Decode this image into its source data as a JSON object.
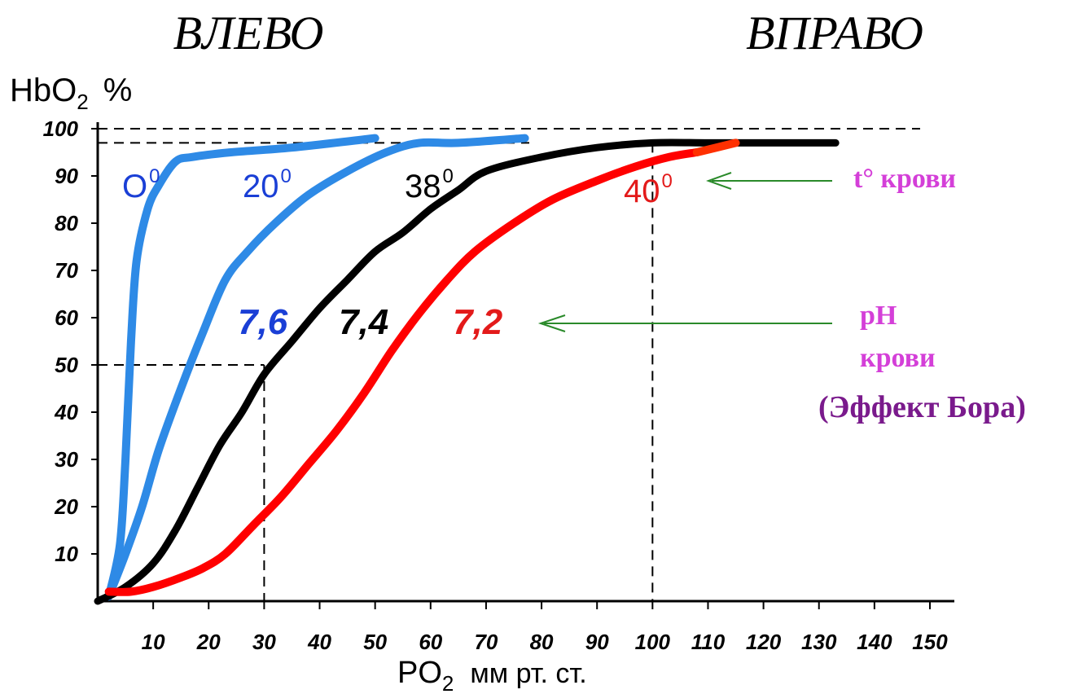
{
  "header": {
    "left_label": "ВЛЕВО",
    "right_label": "ВПРАВО"
  },
  "chart_data": {
    "type": "line",
    "ylabel": "HbO",
    "ylabel_sub": "2",
    "ylabel_unit": "%",
    "xlabel": "PO",
    "xlabel_sub": "2",
    "xlabel_unit": "мм рт. ст.",
    "xlim": [
      0,
      150
    ],
    "ylim": [
      0,
      100
    ],
    "xticks": [
      10,
      20,
      30,
      40,
      50,
      60,
      70,
      80,
      90,
      100,
      110,
      120,
      130,
      140,
      150
    ],
    "yticks": [
      10,
      20,
      30,
      40,
      50,
      60,
      70,
      80,
      90,
      100
    ],
    "grid": false,
    "series": [
      {
        "name": "0°",
        "color": "#2e8ae6",
        "points": [
          [
            2,
            1
          ],
          [
            4,
            12
          ],
          [
            5,
            30
          ],
          [
            6,
            55
          ],
          [
            7,
            72
          ],
          [
            9,
            83
          ],
          [
            11,
            88
          ],
          [
            14,
            93
          ],
          [
            17,
            94
          ],
          [
            24,
            95
          ],
          [
            35,
            96
          ],
          [
            50,
            98
          ]
        ]
      },
      {
        "name": "20°",
        "color": "#2e8ae6",
        "points": [
          [
            2,
            1
          ],
          [
            5,
            10
          ],
          [
            8,
            20
          ],
          [
            11,
            32
          ],
          [
            15,
            45
          ],
          [
            19,
            57
          ],
          [
            23,
            68
          ],
          [
            27,
            74
          ],
          [
            32,
            80
          ],
          [
            38,
            86
          ],
          [
            45,
            91
          ],
          [
            52,
            95
          ],
          [
            58,
            97
          ],
          [
            65,
            97
          ],
          [
            77,
            98
          ]
        ]
      },
      {
        "name": "38° · 7,4",
        "color": "#000000",
        "points": [
          [
            0,
            0
          ],
          [
            5,
            3
          ],
          [
            10,
            8
          ],
          [
            14,
            15
          ],
          [
            18,
            24
          ],
          [
            22,
            33
          ],
          [
            26,
            40
          ],
          [
            30,
            48
          ],
          [
            35,
            55
          ],
          [
            40,
            62
          ],
          [
            45,
            68
          ],
          [
            50,
            74
          ],
          [
            55,
            78
          ],
          [
            60,
            83
          ],
          [
            65,
            87
          ],
          [
            70,
            91
          ],
          [
            80,
            94
          ],
          [
            90,
            96
          ],
          [
            100,
            97
          ],
          [
            110,
            97
          ],
          [
            120,
            97
          ],
          [
            133,
            97
          ]
        ]
      },
      {
        "name": "40° · 7,2",
        "color": "#ff0000",
        "points": [
          [
            2,
            2
          ],
          [
            6,
            2
          ],
          [
            10,
            3
          ],
          [
            15,
            5
          ],
          [
            19,
            7
          ],
          [
            23,
            10
          ],
          [
            28,
            16
          ],
          [
            33,
            22
          ],
          [
            38,
            29
          ],
          [
            43,
            36
          ],
          [
            48,
            44
          ],
          [
            53,
            53
          ],
          [
            58,
            61
          ],
          [
            63,
            68
          ],
          [
            68,
            74
          ],
          [
            75,
            80
          ],
          [
            82,
            85
          ],
          [
            90,
            89
          ],
          [
            97,
            92
          ],
          [
            103,
            94
          ],
          [
            108,
            95
          ]
        ]
      },
      {
        "name": "",
        "color": "#ff3000",
        "points": [
          [
            108,
            95
          ],
          [
            115,
            97
          ]
        ]
      }
    ],
    "guides": {
      "horizontal": [
        100,
        97,
        50
      ],
      "vertical": [
        30,
        100
      ]
    },
    "annotations": {
      "temp_labels": [
        {
          "text": "O",
          "sup": "0",
          "color": "#1a3fd6"
        },
        {
          "text": "20",
          "sup": "0",
          "color": "#1a3fd6"
        },
        {
          "text": "38",
          "sup": "0",
          "color": "#000000"
        },
        {
          "text": "40",
          "sup": "0",
          "color": "#e31a1a"
        }
      ],
      "ph_labels": [
        {
          "text": "7,6",
          "color": "#1a3fd6"
        },
        {
          "text": "7,4",
          "color": "#000000"
        },
        {
          "text": "7,2",
          "color": "#e31a1a"
        }
      ],
      "temp_note": "t° крови",
      "ph_note_line1": "pH",
      "ph_note_line2": "крови",
      "bohr_note": "(Эффект Бора)",
      "note_color": "#d43fd8",
      "bohr_color": "#7a1a8c",
      "arrow_color": "#2a8a2a"
    }
  }
}
